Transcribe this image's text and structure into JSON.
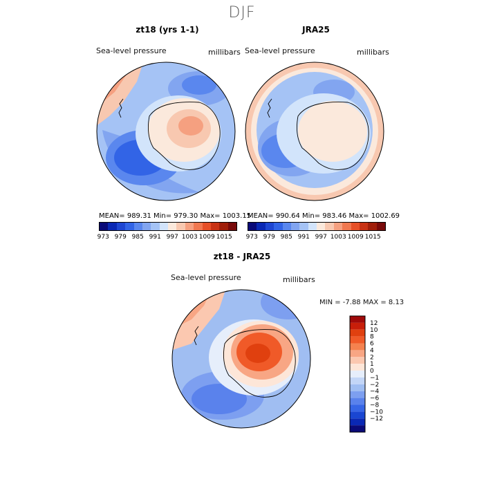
{
  "season": "DJF",
  "panels": [
    {
      "title": "zt18 (yrs 1-1)",
      "field_label": "Sea-level pressure",
      "units": "millibars",
      "stats": "MEAN= 989.31   Min= 979.30   Max= 1003.15"
    },
    {
      "title": "JRA25",
      "field_label": "Sea-level pressure",
      "units": "millibars",
      "stats": "MEAN= 990.64   Min= 983.46   Max= 1002.69"
    },
    {
      "title": "zt18 - JRA25",
      "field_label": "Sea-level pressure",
      "units": "millibars",
      "minmax": "MIN =  -7.88  MAX =   8.13"
    }
  ],
  "abs_colorbar": {
    "colors": [
      "#0a0a78",
      "#0a28b4",
      "#1e46d2",
      "#3264e6",
      "#5a87ee",
      "#82a5f0",
      "#a5c3f5",
      "#d2e4fb",
      "#fbe9dc",
      "#f8c8b0",
      "#f5a080",
      "#f07850",
      "#e65028",
      "#c83214",
      "#a01e0a",
      "#780a0a"
    ],
    "tick_labels": [
      "973",
      "979",
      "985",
      "991",
      "997",
      "1003",
      "1009",
      "1015"
    ]
  },
  "diff_colorbar": {
    "colors": [
      "#a00a0a",
      "#c81e0a",
      "#e0400f",
      "#f05a28",
      "#f5824f",
      "#f8a684",
      "#fbc8b0",
      "#fde6d8",
      "#e6eefb",
      "#c3d6f7",
      "#a0bef2",
      "#7d9ff0",
      "#5a82ec",
      "#3766e6",
      "#1a46d2",
      "#0a28b4",
      "#0a0a78"
    ],
    "tick_labels": [
      "12",
      "10",
      "8",
      "6",
      "4",
      "2",
      "1",
      "0",
      "−1",
      "−2",
      "−4",
      "−6",
      "−8",
      "−10",
      "−12"
    ]
  }
}
